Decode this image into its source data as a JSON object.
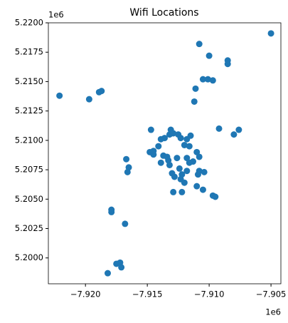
{
  "chart_data": {
    "type": "scatter",
    "title": "Wifi Locations",
    "color": "#1f77b4",
    "x_offset_label": "1e6",
    "y_offset_label": "1e6",
    "xlim": [
      -7.923,
      -7.9042
    ],
    "ylim": [
      5.1978,
      5.22
    ],
    "xticks": [
      {
        "value": -7.92,
        "label": "−7.920"
      },
      {
        "value": -7.915,
        "label": "−7.915"
      },
      {
        "value": -7.91,
        "label": "−7.910"
      },
      {
        "value": -7.905,
        "label": "−7.905"
      }
    ],
    "yticks": [
      {
        "value": 5.2,
        "label": "5.2000"
      },
      {
        "value": 5.2025,
        "label": "5.2025"
      },
      {
        "value": 5.205,
        "label": "5.2050"
      },
      {
        "value": 5.2075,
        "label": "5.2075"
      },
      {
        "value": 5.21,
        "label": "5.2100"
      },
      {
        "value": 5.2125,
        "label": "5.2125"
      },
      {
        "value": 5.215,
        "label": "5.2150"
      },
      {
        "value": 5.2175,
        "label": "5.2175"
      },
      {
        "value": 5.22,
        "label": "5.2200"
      }
    ],
    "x": [
      -7.9221,
      -7.9197,
      -7.9189,
      -7.9187,
      -7.9108,
      -7.91,
      -7.9105,
      -7.9101,
      -7.9097,
      -7.9085,
      -7.9085,
      -7.9111,
      -7.9112,
      -7.905,
      -7.9092,
      -7.9076,
      -7.908,
      -7.9147,
      -7.9131,
      -7.9132,
      -7.9129,
      -7.9125,
      -7.9123,
      -7.9118,
      -7.9115,
      -7.9116,
      -7.9136,
      -7.912,
      -7.9139,
      -7.9141,
      -7.9148,
      -7.9145,
      -7.9137,
      -7.9134,
      -7.9139,
      -7.9133,
      -7.9126,
      -7.9118,
      -7.911,
      -7.9108,
      -7.9113,
      -7.9116,
      -7.9118,
      -7.9108,
      -7.9109,
      -7.9104,
      -7.9124,
      -7.9122,
      -7.913,
      -7.9132,
      -7.9128,
      -7.9123,
      -7.912,
      -7.9129,
      -7.9122,
      -7.911,
      -7.9105,
      -7.9097,
      -7.9165,
      -7.9166,
      -7.9167,
      -7.9168,
      -7.9179,
      -7.9179,
      -7.9175,
      -7.9172,
      -7.9171,
      -7.9182,
      -7.9145,
      -7.9095
    ],
    "values": [
      5.2138,
      5.2135,
      5.2141,
      5.2142,
      5.2182,
      5.2172,
      5.2152,
      5.2152,
      5.2151,
      5.2168,
      5.2165,
      5.2144,
      5.2133,
      5.2191,
      5.211,
      5.2109,
      5.2105,
      5.2109,
      5.2109,
      5.2105,
      5.2106,
      5.2105,
      5.2102,
      5.2101,
      5.2104,
      5.2095,
      5.2102,
      5.2096,
      5.2101,
      5.2095,
      5.209,
      5.2088,
      5.2087,
      5.2086,
      5.2081,
      5.2083,
      5.2085,
      5.2085,
      5.209,
      5.2086,
      5.2082,
      5.2081,
      5.2074,
      5.2074,
      5.2071,
      5.2073,
      5.2076,
      5.2071,
      5.2072,
      5.2079,
      5.2069,
      5.2067,
      5.2064,
      5.2056,
      5.2056,
      5.2061,
      5.2058,
      5.2053,
      5.2077,
      5.2073,
      5.2084,
      5.2029,
      5.2041,
      5.2039,
      5.1995,
      5.1996,
      5.1992,
      5.1987,
      5.2091,
      5.2052
    ]
  }
}
